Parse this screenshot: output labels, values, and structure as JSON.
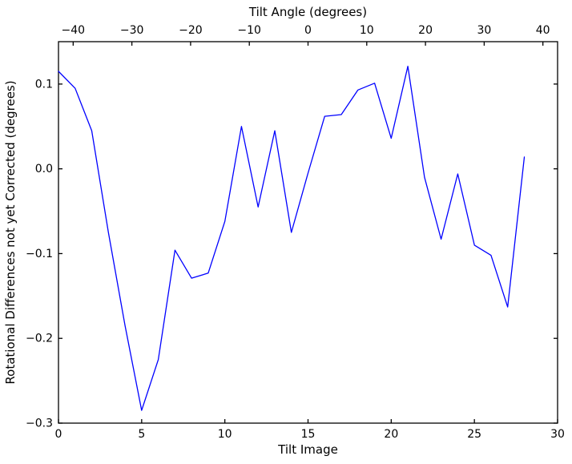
{
  "figure": {
    "background": "#ffffff",
    "axis_color": "#000000"
  },
  "chart_data": {
    "type": "line",
    "title": "",
    "xlabel": "Tilt Image",
    "top_xlabel": "Tilt Angle (degrees)",
    "ylabel": "Rotational Differences not yet Corrected (degrees)",
    "xlim": [
      0,
      30
    ],
    "ylim": [
      -0.3,
      0.15
    ],
    "top_xlim": [
      -42.5,
      42.5
    ],
    "grid": false,
    "legend": false,
    "tick_direction": "in",
    "xticks": {
      "values": [
        0,
        5,
        10,
        15,
        20,
        25,
        30
      ],
      "labels": [
        "0",
        "5",
        "10",
        "15",
        "20",
        "25",
        "30"
      ]
    },
    "top_xticks": {
      "values": [
        -40,
        -30,
        -20,
        -10,
        0,
        10,
        20,
        30,
        40
      ],
      "labels": [
        "−40",
        "−30",
        "−20",
        "−10",
        "0",
        "10",
        "20",
        "30",
        "40"
      ]
    },
    "yticks": {
      "values": [
        0.1,
        0.0,
        -0.1,
        -0.2,
        -0.3
      ],
      "labels": [
        "0.1",
        "0.0",
        "−0.1",
        "−0.2",
        "−0.3"
      ]
    },
    "series": [
      {
        "name": "rotational-differences-not-yet-corrected",
        "color": "#0000ff",
        "x": [
          0,
          1,
          2,
          3,
          4,
          5,
          6,
          7,
          8,
          9,
          10,
          11,
          12,
          13,
          14,
          15,
          16,
          17,
          18,
          19,
          20,
          21,
          22,
          23,
          24,
          25,
          26,
          27,
          28
        ],
        "y": [
          0.115,
          0.095,
          0.045,
          -0.075,
          -0.185,
          -0.285,
          -0.225,
          -0.096,
          -0.129,
          -0.123,
          -0.062,
          0.05,
          -0.045,
          0.045,
          -0.075,
          -0.005,
          0.062,
          0.064,
          0.093,
          0.101,
          0.036,
          0.121,
          -0.01,
          -0.083,
          -0.006,
          -0.09,
          -0.102,
          -0.163,
          0.014
        ]
      }
    ]
  }
}
